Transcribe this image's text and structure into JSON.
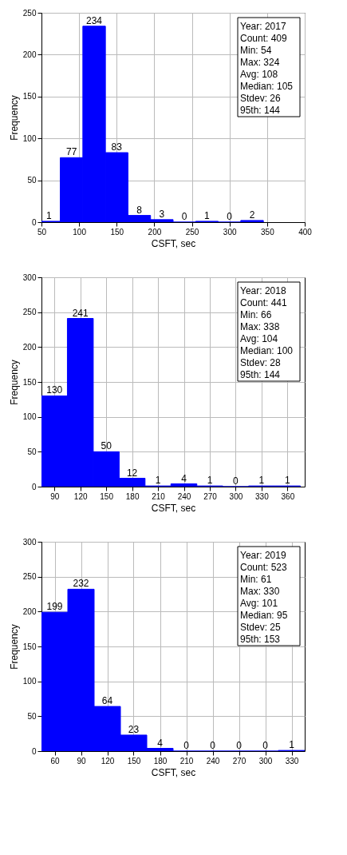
{
  "chart_data": [
    {
      "type": "histogram",
      "xlabel": "CSFT, sec",
      "ylabel": "Frequency",
      "color": "#0000ff",
      "bins": [
        45,
        75,
        105,
        135,
        165,
        195,
        225,
        255,
        285,
        315,
        345
      ],
      "values": [
        1,
        77,
        234,
        83,
        8,
        3,
        0,
        1,
        0,
        2
      ],
      "xlim": [
        50,
        400
      ],
      "xticks": [
        50,
        100,
        150,
        200,
        250,
        300,
        350,
        400
      ],
      "ylim": [
        0,
        250
      ],
      "yticks": [
        0,
        50,
        100,
        150,
        200,
        250
      ],
      "grid": true,
      "data_labels": true,
      "annotations": [
        "Year: 2017",
        "Count: 409",
        "Min: 54",
        "Max: 324",
        "Avg: 108",
        "Median: 105",
        "Stdev: 26",
        "95th: 144"
      ]
    },
    {
      "type": "histogram",
      "xlabel": "CSFT, sec",
      "ylabel": "Frequency",
      "color": "#0000ff",
      "bins": [
        75,
        105,
        135,
        165,
        195,
        225,
        255,
        285,
        315,
        345,
        375
      ],
      "values": [
        130,
        241,
        50,
        12,
        1,
        4,
        1,
        0,
        1,
        1
      ],
      "xlim": [
        75,
        380
      ],
      "xticks": [
        90,
        120,
        150,
        180,
        210,
        240,
        270,
        300,
        330,
        360
      ],
      "ylim": [
        0,
        300
      ],
      "yticks": [
        0,
        50,
        100,
        150,
        200,
        250,
        300
      ],
      "grid": true,
      "data_labels": true,
      "annotations": [
        "Year: 2018",
        "Count: 441",
        "Min: 66",
        "Max: 338",
        "Avg: 104",
        "Median: 100",
        "Stdev: 28",
        "95th: 144"
      ]
    },
    {
      "type": "histogram",
      "xlabel": "CSFT, sec",
      "ylabel": "Frequency",
      "color": "#0000ff",
      "bins": [
        45,
        75,
        105,
        135,
        165,
        195,
        225,
        255,
        285,
        315,
        345
      ],
      "values": [
        199,
        232,
        64,
        23,
        4,
        0,
        0,
        0,
        0,
        1
      ],
      "xlim": [
        45,
        345
      ],
      "xticks": [
        60,
        90,
        120,
        150,
        180,
        210,
        240,
        270,
        300,
        330
      ],
      "ylim": [
        0,
        300
      ],
      "yticks": [
        0,
        50,
        100,
        150,
        200,
        250,
        300
      ],
      "grid": true,
      "data_labels": true,
      "annotations": [
        "Year: 2019",
        "Count: 523",
        "Min: 61",
        "Max: 330",
        "Avg: 101",
        "Median: 95",
        "Stdev: 25",
        "95th: 153"
      ]
    }
  ]
}
